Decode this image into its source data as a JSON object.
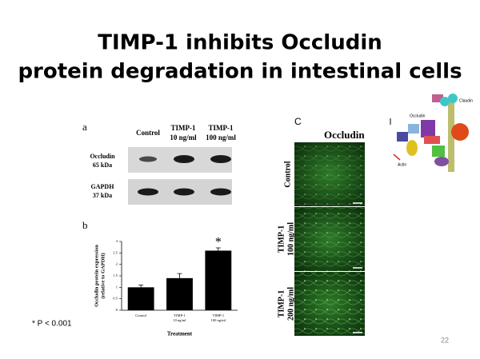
{
  "title": [
    "TIMP-1 inhibits Occludin",
    "protein degradation in intestinal cells"
  ],
  "panel_a": {
    "label": "a",
    "columns": [
      [
        "Control"
      ],
      [
        "TIMP-1",
        "10 ng/ml"
      ],
      [
        "TIMP-1",
        "100 ng/ml"
      ]
    ],
    "rows": [
      {
        "name": "Occludin",
        "size": "65 kDa"
      },
      {
        "name": "GAPDH",
        "size": "37 kDa"
      }
    ]
  },
  "chart_data": {
    "type": "bar",
    "panel_label": "b",
    "categories": [
      [
        "Control"
      ],
      [
        "TIMP-1",
        "10 ng/ml"
      ],
      [
        "TIMP-1",
        "100 ng/ml"
      ]
    ],
    "values": [
      1.0,
      1.4,
      2.6
    ],
    "errors": [
      0.1,
      0.2,
      0.12
    ],
    "color": "#000000",
    "ylim": [
      0,
      3
    ],
    "yticks": [
      0,
      0.5,
      1,
      1.5,
      2,
      2.5,
      3
    ],
    "x_label": "Treatment",
    "y_label": [
      "Occludin protein expression",
      "(relative to GAPDH)"
    ],
    "annotation": "*"
  },
  "panel_c": {
    "label": "C",
    "header": "Occludin",
    "rows": [
      [
        "Control"
      ],
      [
        "TIMP-1",
        "100 ng/ml"
      ],
      [
        "TIMP-1",
        "200 ng/ml"
      ]
    ]
  },
  "diagram": {
    "labels": [
      "Claudin",
      "Occludin",
      "Actin"
    ]
  },
  "footnote": "* P < 0.001",
  "page_number": "22"
}
